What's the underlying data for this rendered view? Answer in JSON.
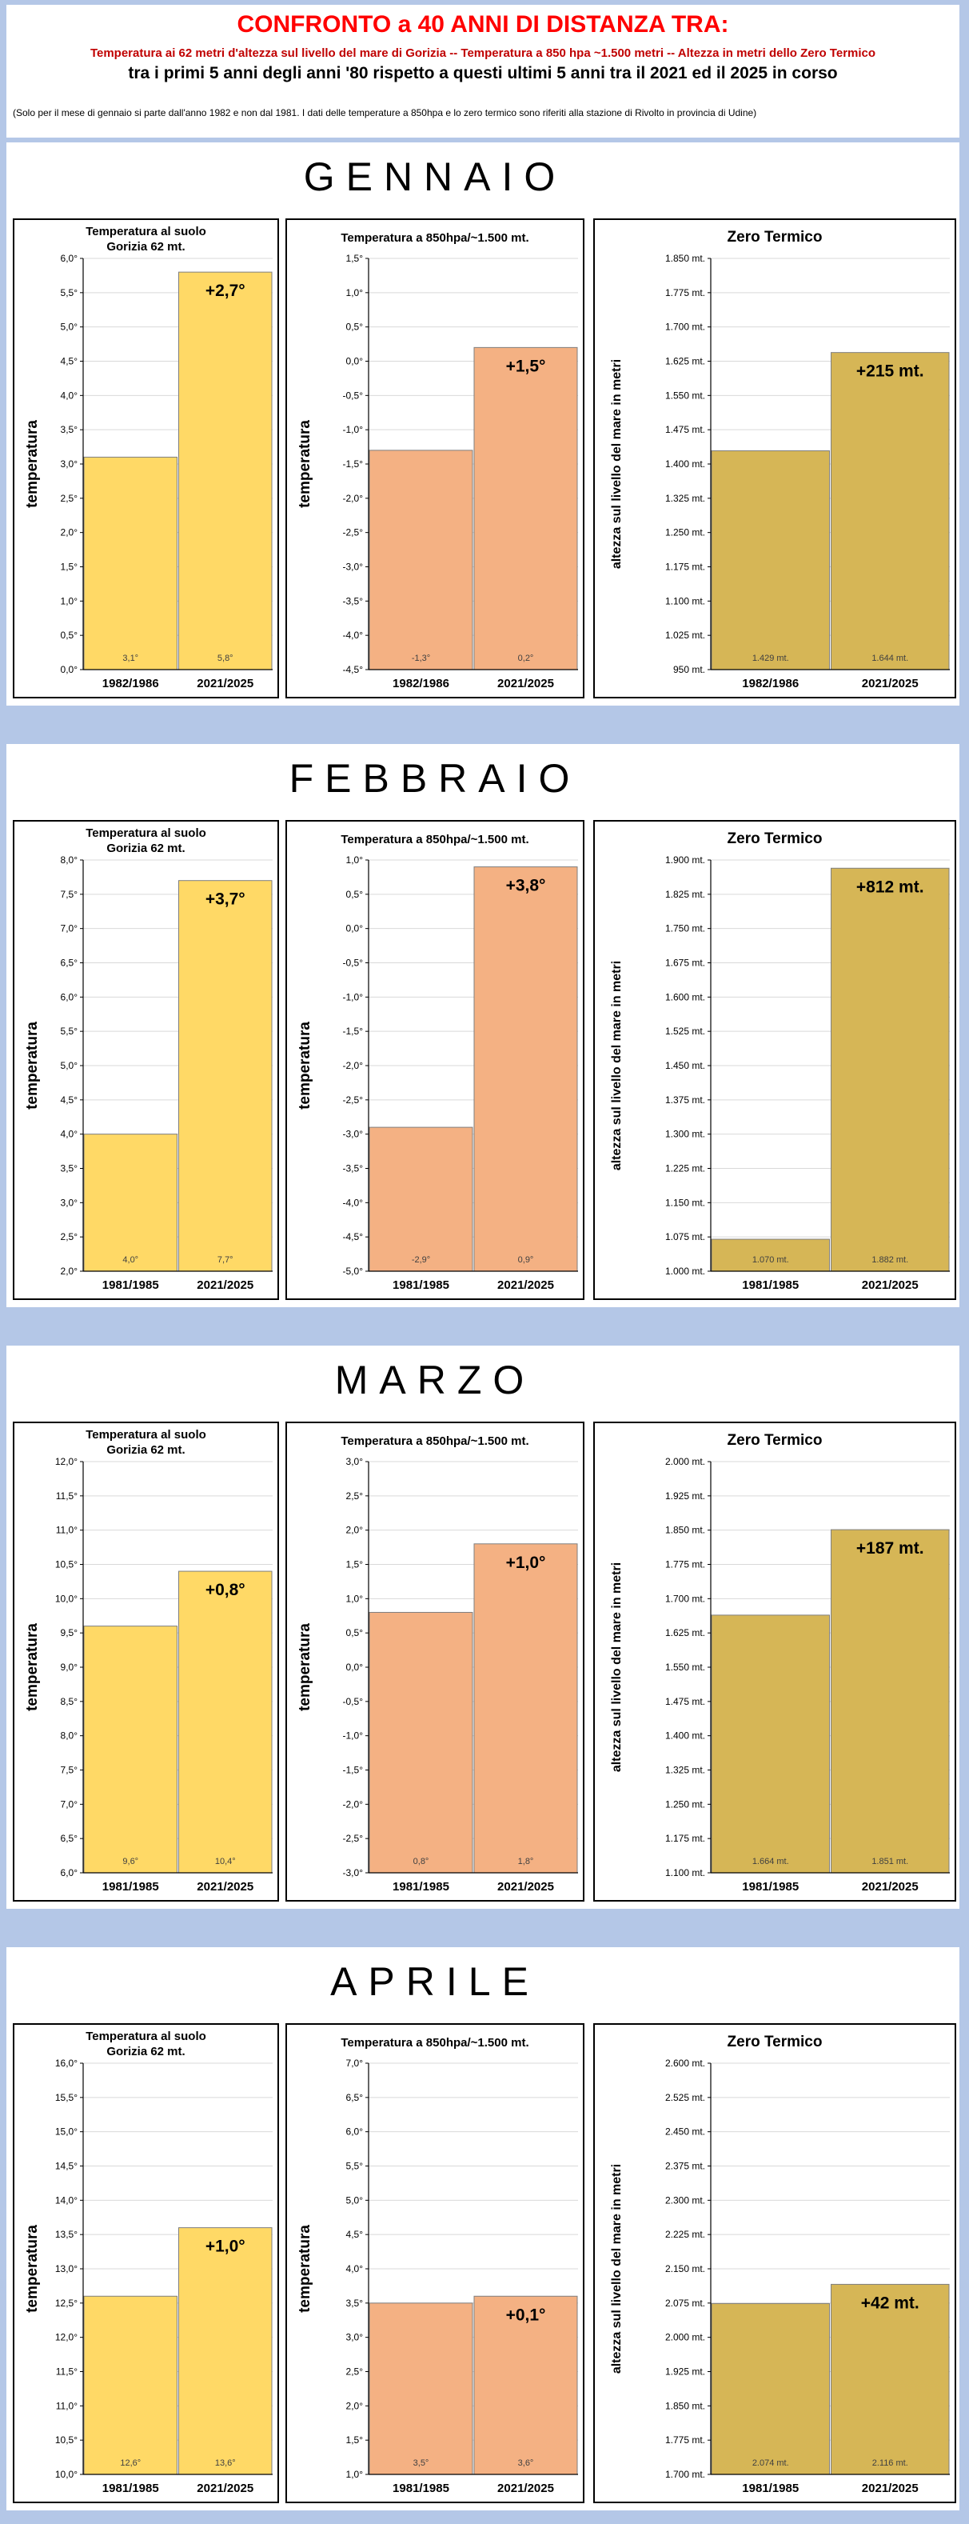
{
  "header": {
    "title": "CONFRONTO a 40 ANNI DI DISTANZA TRA:",
    "subtitle": "Temperatura ai 62 metri d'altezza sul livello del mare di Gorizia -- Temperatura a 850 hpa ~1.500 metri  -- Altezza in metri dello Zero Termico",
    "line3": "tra i primi 5 anni degli anni '80 rispetto a questi ultimi 5 anni tra il 2021 ed il 2025 in corso",
    "note": "(Solo per il mese di gennaio si parte dall'anno 1982 e non dal 1981. I dati delle temperature a 850hpa e lo zero termico sono riferiti alla stazione di Rivolto in provincia di Udine)"
  },
  "colors": {
    "ground": "#ffd966",
    "hpa": "#f4b183",
    "zero": "#d6b656"
  },
  "months": [
    {
      "name": "GENNAIO",
      "charts": [
        {
          "kind": "ground",
          "title_lines": [
            "Temperatura al suolo",
            "Gorizia 62 mt."
          ],
          "ylabel": "temperatura",
          "categories": [
            "1982/1986",
            "2021/2025"
          ],
          "values": [
            3.1,
            5.8
          ],
          "ylim": [
            0,
            6
          ],
          "step": 0.5,
          "tick_unit": "°",
          "value_labels": [
            "3,1°",
            "5,8°"
          ],
          "diff_label": "+2,7°"
        },
        {
          "kind": "hpa",
          "title_lines": [
            "Temperatura a 850hpa/~1.500 mt."
          ],
          "ylabel": "temperatura",
          "categories": [
            "1982/1986",
            "2021/2025"
          ],
          "values": [
            -1.3,
            0.2
          ],
          "ylim": [
            -4.5,
            1.5
          ],
          "step": 0.5,
          "tick_unit": "°",
          "value_labels": [
            "-1,3°",
            "0,2°"
          ],
          "diff_label": "+1,5°"
        },
        {
          "kind": "zero",
          "title_lines": [
            "Zero Termico"
          ],
          "ylabel": "altezza  sul  livello  del  mare  in  metri",
          "categories": [
            "1982/1986",
            "2021/2025"
          ],
          "values": [
            1429,
            1644
          ],
          "ylim": [
            950,
            1850
          ],
          "step": 75,
          "tick_unit": " mt.",
          "value_labels": [
            "1.429 mt.",
            "1.644 mt."
          ],
          "diff_label": "+215 mt."
        }
      ]
    },
    {
      "name": "FEBBRAIO",
      "charts": [
        {
          "kind": "ground",
          "title_lines": [
            "Temperatura al suolo",
            "Gorizia 62 mt."
          ],
          "ylabel": "temperatura",
          "categories": [
            "1981/1985",
            "2021/2025"
          ],
          "values": [
            4.0,
            7.7
          ],
          "ylim": [
            2,
            8
          ],
          "step": 0.5,
          "tick_unit": "°",
          "value_labels": [
            "4,0°",
            "7,7°"
          ],
          "diff_label": "+3,7°"
        },
        {
          "kind": "hpa",
          "title_lines": [
            "Temperatura a 850hpa/~1.500 mt."
          ],
          "ylabel": "temperatura",
          "categories": [
            "1981/1985",
            "2021/2025"
          ],
          "values": [
            -2.9,
            0.9
          ],
          "ylim": [
            -5,
            1
          ],
          "step": 0.5,
          "tick_unit": "°",
          "value_labels": [
            "-2,9°",
            "0,9°"
          ],
          "diff_label": "+3,8°"
        },
        {
          "kind": "zero",
          "title_lines": [
            "Zero Termico"
          ],
          "ylabel": "altezza  sul  livello  del  mare  in  metri",
          "categories": [
            "1981/1985",
            "2021/2025"
          ],
          "values": [
            1070,
            1882
          ],
          "ylim": [
            1000,
            1900
          ],
          "step": 75,
          "tick_unit": " mt.",
          "value_labels": [
            "1.070 mt.",
            "1.882 mt."
          ],
          "diff_label": "+812 mt."
        }
      ]
    },
    {
      "name": "MARZO",
      "charts": [
        {
          "kind": "ground",
          "title_lines": [
            "Temperatura al suolo",
            "Gorizia 62 mt."
          ],
          "ylabel": "temperatura",
          "categories": [
            "1981/1985",
            "2021/2025"
          ],
          "values": [
            9.6,
            10.4
          ],
          "ylim": [
            6,
            12
          ],
          "step": 0.5,
          "tick_unit": "°",
          "value_labels": [
            "9,6°",
            "10,4°"
          ],
          "diff_label": "+0,8°"
        },
        {
          "kind": "hpa",
          "title_lines": [
            "Temperatura a 850hpa/~1.500 mt."
          ],
          "ylabel": "temperatura",
          "categories": [
            "1981/1985",
            "2021/2025"
          ],
          "values": [
            0.8,
            1.8
          ],
          "ylim": [
            -3,
            3
          ],
          "step": 0.5,
          "tick_unit": "°",
          "value_labels": [
            "0,8°",
            "1,8°"
          ],
          "diff_label": "+1,0°"
        },
        {
          "kind": "zero",
          "title_lines": [
            "Zero Termico"
          ],
          "ylabel": "altezza  sul  livello  del  mare  in  metri",
          "categories": [
            "1981/1985",
            "2021/2025"
          ],
          "values": [
            1664,
            1851
          ],
          "ylim": [
            1100,
            2000
          ],
          "step": 75,
          "tick_unit": " mt.",
          "value_labels": [
            "1.664 mt.",
            "1.851 mt."
          ],
          "diff_label": "+187 mt."
        }
      ]
    },
    {
      "name": "APRILE",
      "charts": [
        {
          "kind": "ground",
          "title_lines": [
            "Temperatura al suolo",
            "Gorizia 62 mt."
          ],
          "ylabel": "temperatura",
          "categories": [
            "1981/1985",
            "2021/2025"
          ],
          "values": [
            12.6,
            13.6
          ],
          "ylim": [
            10,
            16
          ],
          "step": 0.5,
          "tick_unit": "°",
          "value_labels": [
            "12,6°",
            "13,6°"
          ],
          "diff_label": "+1,0°"
        },
        {
          "kind": "hpa",
          "title_lines": [
            "Temperatura a 850hpa/~1.500 mt."
          ],
          "ylabel": "temperatura",
          "categories": [
            "1981/1985",
            "2021/2025"
          ],
          "values": [
            3.5,
            3.6
          ],
          "ylim": [
            1,
            7
          ],
          "step": 0.5,
          "tick_unit": "°",
          "value_labels": [
            "3,5°",
            "3,6°"
          ],
          "diff_label": "+0,1°"
        },
        {
          "kind": "zero",
          "title_lines": [
            "Zero Termico"
          ],
          "ylabel": "altezza  sul  livello  del  mare  in  metri",
          "categories": [
            "1981/1985",
            "2021/2025"
          ],
          "values": [
            2074,
            2116
          ],
          "ylim": [
            1700,
            2600
          ],
          "step": 75,
          "tick_unit": " mt.",
          "value_labels": [
            "2.074 mt.",
            "2.116 mt."
          ],
          "diff_label": "+42 mt."
        }
      ]
    }
  ],
  "chart_data": [
    {
      "type": "bar",
      "title": "Temperatura al suolo Gorizia 62 mt. - GENNAIO",
      "categories": [
        "1982/1986",
        "2021/2025"
      ],
      "values": [
        3.1,
        5.8
      ],
      "ylabel": "temperatura",
      "ylim": [
        0,
        6
      ]
    },
    {
      "type": "bar",
      "title": "Temperatura a 850hpa/~1.500 mt. - GENNAIO",
      "categories": [
        "1982/1986",
        "2021/2025"
      ],
      "values": [
        -1.3,
        0.2
      ],
      "ylabel": "temperatura",
      "ylim": [
        -4.5,
        1.5
      ]
    },
    {
      "type": "bar",
      "title": "Zero Termico - GENNAIO",
      "categories": [
        "1982/1986",
        "2021/2025"
      ],
      "values": [
        1429,
        1644
      ],
      "ylabel": "altezza sul livello del mare in metri",
      "ylim": [
        950,
        1850
      ]
    },
    {
      "type": "bar",
      "title": "Temperatura al suolo Gorizia 62 mt. - FEBBRAIO",
      "categories": [
        "1981/1985",
        "2021/2025"
      ],
      "values": [
        4.0,
        7.7
      ],
      "ylabel": "temperatura",
      "ylim": [
        2,
        8
      ]
    },
    {
      "type": "bar",
      "title": "Temperatura a 850hpa/~1.500 mt. - FEBBRAIO",
      "categories": [
        "1981/1985",
        "2021/2025"
      ],
      "values": [
        -2.9,
        0.9
      ],
      "ylabel": "temperatura",
      "ylim": [
        -5,
        1
      ]
    },
    {
      "type": "bar",
      "title": "Zero Termico - FEBBRAIO",
      "categories": [
        "1981/1985",
        "2021/2025"
      ],
      "values": [
        1070,
        1882
      ],
      "ylabel": "altezza sul livello del mare in metri",
      "ylim": [
        1000,
        1900
      ]
    },
    {
      "type": "bar",
      "title": "Temperatura al suolo Gorizia 62 mt. - MARZO",
      "categories": [
        "1981/1985",
        "2021/2025"
      ],
      "values": [
        9.6,
        10.4
      ],
      "ylabel": "temperatura",
      "ylim": [
        6,
        12
      ]
    },
    {
      "type": "bar",
      "title": "Temperatura a 850hpa/~1.500 mt. - MARZO",
      "categories": [
        "1981/1985",
        "2021/2025"
      ],
      "values": [
        0.8,
        1.8
      ],
      "ylabel": "temperatura",
      "ylim": [
        -3,
        3
      ]
    },
    {
      "type": "bar",
      "title": "Zero Termico - MARZO",
      "categories": [
        "1981/1985",
        "2021/2025"
      ],
      "values": [
        1664,
        1851
      ],
      "ylabel": "altezza sul livello del mare in metri",
      "ylim": [
        1100,
        2000
      ]
    },
    {
      "type": "bar",
      "title": "Temperatura al suolo Gorizia 62 mt. - APRILE",
      "categories": [
        "1981/1985",
        "2021/2025"
      ],
      "values": [
        12.6,
        13.6
      ],
      "ylabel": "temperatura",
      "ylim": [
        10,
        16
      ]
    },
    {
      "type": "bar",
      "title": "Temperatura a 850hpa/~1.500 mt. - APRILE",
      "categories": [
        "1981/1985",
        "2021/2025"
      ],
      "values": [
        3.5,
        3.6
      ],
      "ylabel": "temperatura",
      "ylim": [
        1,
        7
      ]
    },
    {
      "type": "bar",
      "title": "Zero Termico - APRILE",
      "categories": [
        "1981/1985",
        "2021/2025"
      ],
      "values": [
        2074,
        2116
      ],
      "ylabel": "altezza sul livello del mare in metri",
      "ylim": [
        1700,
        2600
      ]
    }
  ]
}
